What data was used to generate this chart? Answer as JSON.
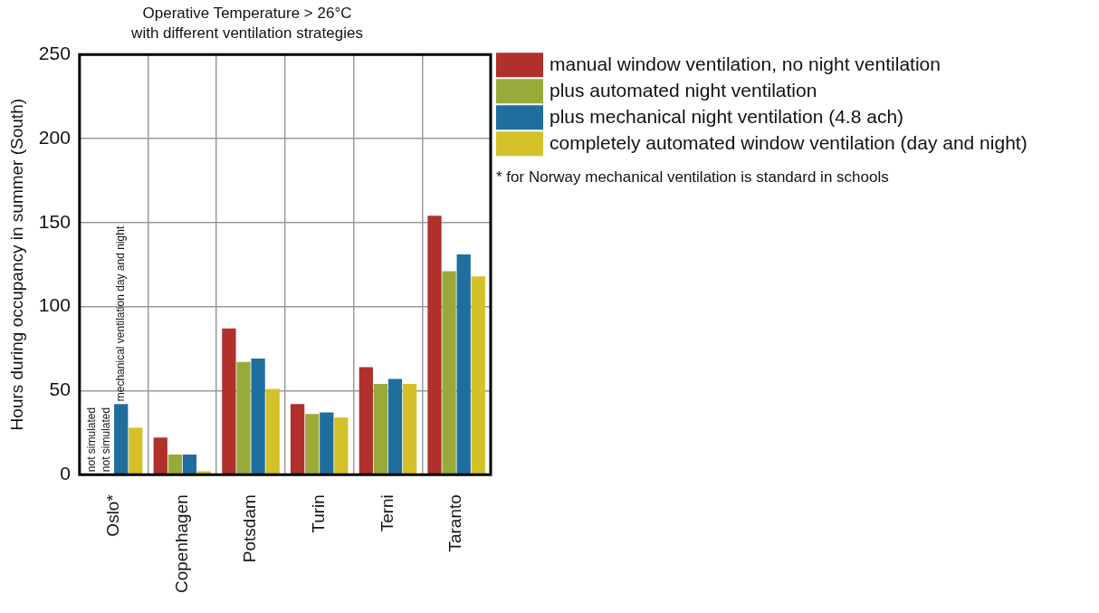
{
  "chart_data": {
    "type": "bar",
    "title": "Operative Temperature > 26°C\nwith different ventilation strategies",
    "ylabel": "Hours during occupancy in summer (South)",
    "categories": [
      "Oslo*",
      "Copenhagen",
      "Potsdam",
      "Turin",
      "Terni",
      "Taranto"
    ],
    "series": [
      {
        "name": "manual window ventilation, no night ventilation",
        "color": "#b0302b",
        "values": [
          null,
          22,
          87,
          42,
          64,
          154
        ]
      },
      {
        "name": "plus automated night ventilation",
        "color": "#9aaa3a",
        "values": [
          null,
          12,
          67,
          36,
          54,
          121
        ]
      },
      {
        "name": "plus mechanical night ventilation (4.8 ach)",
        "color": "#1f6e9e",
        "values": [
          42,
          12,
          69,
          37,
          57,
          131
        ]
      },
      {
        "name": "completely automated window ventilation (day and night)",
        "color": "#d4c12a",
        "values": [
          28,
          2,
          51,
          34,
          54,
          118
        ]
      }
    ],
    "ylim": [
      0,
      250
    ],
    "yticks": [
      0,
      50,
      100,
      150,
      200,
      250
    ],
    "grid": true,
    "legend": "top right",
    "annotations": [
      {
        "text": "not simulated",
        "x": "Oslo*",
        "y": 0
      },
      {
        "text": "not simulated",
        "x": "Oslo*",
        "y": 0
      },
      {
        "text": "mechanical ventilation day and night",
        "x": "Oslo*",
        "y": 42
      },
      "* for Norway mechanical ventilation is standard in schools"
    ]
  }
}
